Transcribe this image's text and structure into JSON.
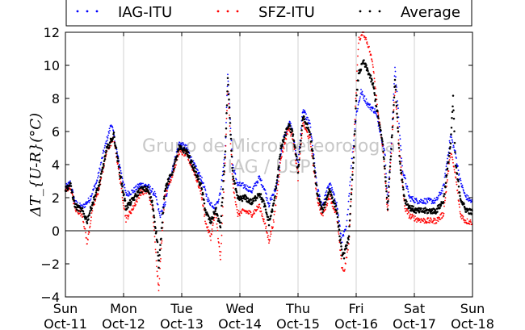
{
  "chart_data": {
    "type": "scatter",
    "ylabel": "ΔT_{U-R}(°C)",
    "ylim": [
      -4,
      12
    ],
    "yticks": [
      "−4",
      "−2",
      "0",
      "2",
      "4",
      "6",
      "8",
      "10",
      "12"
    ],
    "xlim": [
      "Oct-11",
      "Oct-18"
    ],
    "xticks": [
      {
        "day": "Sun",
        "date": "Oct-11"
      },
      {
        "day": "Mon",
        "date": "Oct-12"
      },
      {
        "day": "Tue",
        "date": "Oct-13"
      },
      {
        "day": "Wed",
        "date": "Oct-14"
      },
      {
        "day": "Thu",
        "date": "Oct-15"
      },
      {
        "day": "Fri",
        "date": "Oct-16"
      },
      {
        "day": "Sat",
        "date": "Oct-17"
      },
      {
        "day": "Sun",
        "date": "Oct-18"
      }
    ],
    "grid": "vertical",
    "zero_line": true,
    "legend_position": "top",
    "watermark": [
      "Grupo de Micrometeorologia",
      "IAG / USP"
    ],
    "series": [
      {
        "name": "IAG-ITU",
        "color": "#0000ff",
        "points": [
          [
            "Oct-11 00:00",
            2.6
          ],
          [
            "Oct-11 02:00",
            2.9
          ],
          [
            "Oct-11 04:00",
            1.7
          ],
          [
            "Oct-11 07:00",
            1.4
          ],
          [
            "Oct-11 10:00",
            1.9
          ],
          [
            "Oct-11 13:00",
            3.0
          ],
          [
            "Oct-11 16:00",
            4.9
          ],
          [
            "Oct-11 19:00",
            6.5
          ],
          [
            "Oct-11 22:00",
            4.2
          ],
          [
            "Oct-12 01:00",
            2.2
          ],
          [
            "Oct-12 04:00",
            2.4
          ],
          [
            "Oct-12 07:00",
            2.8
          ],
          [
            "Oct-12 10:00",
            2.7
          ],
          [
            "Oct-12 13:00",
            2.2
          ],
          [
            "Oct-12 15:00",
            0.9
          ],
          [
            "Oct-12 17:00",
            1.6
          ],
          [
            "Oct-12 20:00",
            3.7
          ],
          [
            "Oct-12 23:00",
            5.3
          ],
          [
            "Oct-13 02:00",
            5.0
          ],
          [
            "Oct-13 05:00",
            4.0
          ],
          [
            "Oct-13 08:00",
            3.2
          ],
          [
            "Oct-13 11:00",
            1.8
          ],
          [
            "Oct-13 14:00",
            1.4
          ],
          [
            "Oct-13 16:00",
            2.3
          ],
          [
            "Oct-13 18:00",
            5.0
          ],
          [
            "Oct-13 19:00",
            9.6
          ],
          [
            "Oct-13 21:00",
            4.0
          ],
          [
            "Oct-13 23:00",
            2.8
          ],
          [
            "Oct-14 02:00",
            2.7
          ],
          [
            "Oct-14 05:00",
            2.4
          ],
          [
            "Oct-14 08:00",
            3.2
          ],
          [
            "Oct-14 10:00",
            2.6
          ],
          [
            "Oct-14 12:00",
            1.6
          ],
          [
            "Oct-14 15:00",
            2.6
          ],
          [
            "Oct-14 18:00",
            5.6
          ],
          [
            "Oct-14 21:00",
            6.6
          ],
          [
            "Oct-15 00:00",
            4.0
          ],
          [
            "Oct-15 02:00",
            7.3
          ],
          [
            "Oct-15 05:00",
            6.4
          ],
          [
            "Oct-15 08:00",
            2.5
          ],
          [
            "Oct-15 10:00",
            1.5
          ],
          [
            "Oct-15 13:00",
            2.9
          ],
          [
            "Oct-15 16:00",
            1.6
          ],
          [
            "Oct-15 18:00",
            -0.6
          ],
          [
            "Oct-15 20:00",
            0.2
          ],
          [
            "Oct-15 22:00",
            4.0
          ],
          [
            "Oct-16 00:00",
            7.0
          ],
          [
            "Oct-16 02:00",
            8.4
          ],
          [
            "Oct-16 05:00",
            7.6
          ],
          [
            "Oct-16 08:00",
            7.2
          ],
          [
            "Oct-16 10:00",
            6.0
          ],
          [
            "Oct-16 12:00",
            4.5
          ],
          [
            "Oct-16 13:00",
            1.8
          ],
          [
            "Oct-16 15:00",
            6.6
          ],
          [
            "Oct-16 16:00",
            10.0
          ],
          [
            "Oct-16 19:00",
            3.8
          ],
          [
            "Oct-16 22:00",
            2.0
          ],
          [
            "Oct-17 01:00",
            1.8
          ],
          [
            "Oct-17 05:00",
            1.8
          ],
          [
            "Oct-17 09:00",
            1.8
          ],
          [
            "Oct-17 12:00",
            2.6
          ],
          [
            "Oct-17 15:00",
            5.8
          ],
          [
            "Oct-17 17:00",
            4.6
          ],
          [
            "Oct-17 19:00",
            3.0
          ],
          [
            "Oct-17 21:00",
            2.1
          ],
          [
            "Oct-18 00:00",
            1.7
          ]
        ]
      },
      {
        "name": "SFZ-ITU",
        "color": "#ff0000",
        "points": [
          [
            "Oct-11 00:00",
            2.4
          ],
          [
            "Oct-11 02:00",
            2.7
          ],
          [
            "Oct-11 04:00",
            1.3
          ],
          [
            "Oct-11 07:00",
            1.0
          ],
          [
            "Oct-11 09:00",
            -0.8
          ],
          [
            "Oct-11 11:00",
            1.2
          ],
          [
            "Oct-11 14:00",
            2.6
          ],
          [
            "Oct-11 17:00",
            4.8
          ],
          [
            "Oct-11 20:00",
            5.6
          ],
          [
            "Oct-11 22:00",
            3.6
          ],
          [
            "Oct-12 01:00",
            0.7
          ],
          [
            "Oct-12 04:00",
            1.4
          ],
          [
            "Oct-12 07:00",
            2.3
          ],
          [
            "Oct-12 10:00",
            2.4
          ],
          [
            "Oct-12 12:00",
            1.3
          ],
          [
            "Oct-12 13:00",
            -0.8
          ],
          [
            "Oct-12 14:00",
            -2.6
          ],
          [
            "Oct-12 14:30",
            -3.5
          ],
          [
            "Oct-12 17:00",
            2.2
          ],
          [
            "Oct-12 20:00",
            3.3
          ],
          [
            "Oct-12 23:00",
            4.8
          ],
          [
            "Oct-13 02:00",
            4.6
          ],
          [
            "Oct-13 05:00",
            3.6
          ],
          [
            "Oct-13 08:00",
            2.3
          ],
          [
            "Oct-13 10:00",
            0.4
          ],
          [
            "Oct-13 12:00",
            -0.4
          ],
          [
            "Oct-13 14:00",
            1.2
          ],
          [
            "Oct-13 16:00",
            -1.8
          ],
          [
            "Oct-13 18:00",
            4.5
          ],
          [
            "Oct-13 19:00",
            8.8
          ],
          [
            "Oct-13 21:00",
            3.0
          ],
          [
            "Oct-13 23:00",
            1.0
          ],
          [
            "Oct-14 02:00",
            1.2
          ],
          [
            "Oct-14 05:00",
            1.0
          ],
          [
            "Oct-14 08:00",
            1.5
          ],
          [
            "Oct-14 10:00",
            0.6
          ],
          [
            "Oct-14 12:00",
            -0.6
          ],
          [
            "Oct-14 14:00",
            0.6
          ],
          [
            "Oct-14 17:00",
            4.4
          ],
          [
            "Oct-14 20:00",
            6.2
          ],
          [
            "Oct-14 22:00",
            5.6
          ],
          [
            "Oct-15 00:00",
            3.2
          ],
          [
            "Oct-15 02:00",
            6.5
          ],
          [
            "Oct-15 05:00",
            5.5
          ],
          [
            "Oct-15 08:00",
            1.9
          ],
          [
            "Oct-15 10:00",
            0.9
          ],
          [
            "Oct-15 13:00",
            2.1
          ],
          [
            "Oct-15 16:00",
            0.9
          ],
          [
            "Oct-15 18:00",
            -2.1
          ],
          [
            "Oct-15 19:00",
            -2.5
          ],
          [
            "Oct-15 21:00",
            -0.8
          ],
          [
            "Oct-15 23:00",
            5.2
          ],
          [
            "Oct-16 00:00",
            8.5
          ],
          [
            "Oct-16 01:00",
            11.5
          ],
          [
            "Oct-16 03:00",
            12.0
          ],
          [
            "Oct-16 05:00",
            11.2
          ],
          [
            "Oct-16 07:00",
            10.0
          ],
          [
            "Oct-16 09:00",
            7.2
          ],
          [
            "Oct-16 11:00",
            5.0
          ],
          [
            "Oct-16 13:00",
            1.1
          ],
          [
            "Oct-16 15:00",
            6.0
          ],
          [
            "Oct-16 16:00",
            8.6
          ],
          [
            "Oct-16 18:00",
            4.6
          ],
          [
            "Oct-16 20:00",
            1.4
          ],
          [
            "Oct-16 22:00",
            0.9
          ],
          [
            "Oct-17 01:00",
            0.7
          ],
          [
            "Oct-17 05:00",
            0.6
          ],
          [
            "Oct-17 09:00",
            0.6
          ],
          [
            "Oct-17 12:00",
            1.0
          ],
          [
            "Oct-17 15:00",
            4.8
          ],
          [
            "Oct-17 17:00",
            3.3
          ],
          [
            "Oct-17 19:00",
            1.0
          ],
          [
            "Oct-17 21:00",
            0.6
          ],
          [
            "Oct-18 00:00",
            0.5
          ]
        ]
      },
      {
        "name": "Average",
        "color": "#000000",
        "points": [
          [
            "Oct-11 00:00",
            2.5
          ],
          [
            "Oct-11 02:00",
            2.8
          ],
          [
            "Oct-11 04:00",
            1.5
          ],
          [
            "Oct-11 07:00",
            1.2
          ],
          [
            "Oct-11 09:00",
            0.6
          ],
          [
            "Oct-11 11:00",
            1.6
          ],
          [
            "Oct-11 14:00",
            2.8
          ],
          [
            "Oct-11 17:00",
            4.9
          ],
          [
            "Oct-11 20:00",
            5.8
          ],
          [
            "Oct-11 22:00",
            3.9
          ],
          [
            "Oct-12 01:00",
            1.4
          ],
          [
            "Oct-12 04:00",
            1.9
          ],
          [
            "Oct-12 07:00",
            2.5
          ],
          [
            "Oct-12 10:00",
            2.5
          ],
          [
            "Oct-12 12:00",
            1.6
          ],
          [
            "Oct-12 14:00",
            -0.8
          ],
          [
            "Oct-12 14:30",
            -2.2
          ],
          [
            "Oct-12 17:00",
            2.5
          ],
          [
            "Oct-12 20:00",
            3.5
          ],
          [
            "Oct-12 23:00",
            5.0
          ],
          [
            "Oct-13 02:00",
            4.8
          ],
          [
            "Oct-13 05:00",
            3.8
          ],
          [
            "Oct-13 08:00",
            2.7
          ],
          [
            "Oct-13 10:00",
            1.1
          ],
          [
            "Oct-13 12:00",
            0.5
          ],
          [
            "Oct-13 14:00",
            1.3
          ],
          [
            "Oct-13 16:00",
            0.2
          ],
          [
            "Oct-13 18:00",
            4.8
          ],
          [
            "Oct-13 19:00",
            9.2
          ],
          [
            "Oct-13 21:00",
            3.5
          ],
          [
            "Oct-13 23:00",
            1.9
          ],
          [
            "Oct-14 02:00",
            2.0
          ],
          [
            "Oct-14 05:00",
            1.7
          ],
          [
            "Oct-14 08:00",
            2.3
          ],
          [
            "Oct-14 10:00",
            1.6
          ],
          [
            "Oct-14 12:00",
            0.5
          ],
          [
            "Oct-14 14:00",
            1.6
          ],
          [
            "Oct-14 17:00",
            5.0
          ],
          [
            "Oct-14 20:00",
            6.4
          ],
          [
            "Oct-14 22:00",
            5.8
          ],
          [
            "Oct-15 00:00",
            3.6
          ],
          [
            "Oct-15 02:00",
            6.9
          ],
          [
            "Oct-15 05:00",
            5.9
          ],
          [
            "Oct-15 08:00",
            2.2
          ],
          [
            "Oct-15 10:00",
            1.2
          ],
          [
            "Oct-15 13:00",
            2.5
          ],
          [
            "Oct-15 16:00",
            1.2
          ],
          [
            "Oct-15 18:00",
            -1.3
          ],
          [
            "Oct-15 19:00",
            -1.5
          ],
          [
            "Oct-15 21:00",
            -0.3
          ],
          [
            "Oct-15 23:00",
            4.6
          ],
          [
            "Oct-16 00:00",
            7.8
          ],
          [
            "Oct-16 01:00",
            9.5
          ],
          [
            "Oct-16 03:00",
            10.2
          ],
          [
            "Oct-16 05:00",
            9.6
          ],
          [
            "Oct-16 07:00",
            8.8
          ],
          [
            "Oct-16 09:00",
            6.9
          ],
          [
            "Oct-16 11:00",
            5.2
          ],
          [
            "Oct-16 13:00",
            1.4
          ],
          [
            "Oct-16 15:00",
            6.3
          ],
          [
            "Oct-16 16:00",
            9.2
          ],
          [
            "Oct-16 18:00",
            4.2
          ],
          [
            "Oct-16 20:00",
            1.9
          ],
          [
            "Oct-16 22:00",
            1.4
          ],
          [
            "Oct-17 01:00",
            1.2
          ],
          [
            "Oct-17 05:00",
            1.2
          ],
          [
            "Oct-17 09:00",
            1.2
          ],
          [
            "Oct-17 12:00",
            1.8
          ],
          [
            "Oct-17 15:00",
            5.3
          ],
          [
            "Oct-17 16:00",
            8.0
          ],
          [
            "Oct-17 17:00",
            4.0
          ],
          [
            "Oct-17 19:00",
            2.0
          ],
          [
            "Oct-17 21:00",
            1.3
          ],
          [
            "Oct-18 00:00",
            1.1
          ]
        ]
      }
    ]
  }
}
